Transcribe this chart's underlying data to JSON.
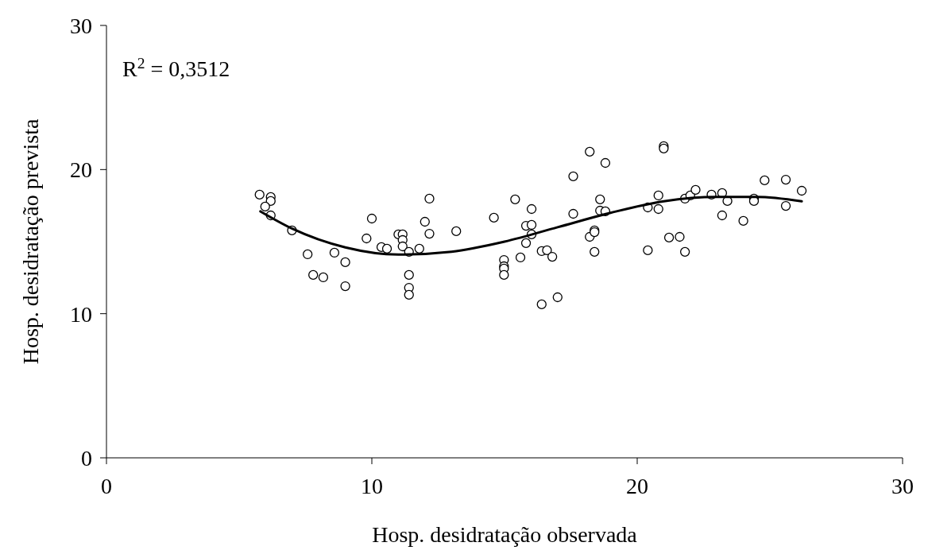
{
  "chart_data": {
    "type": "scatter",
    "xlabel": "Hosp. desidratação observada",
    "ylabel": "Hosp. desidratação prevista",
    "annotations": [
      "R$^{2}$ = 0,3512"
    ],
    "xlim": [
      0,
      30
    ],
    "ylim": [
      0,
      30
    ],
    "xticks": [
      0,
      10,
      20,
      30
    ],
    "yticks": [
      0,
      10,
      20,
      30
    ],
    "grid": false,
    "series": [
      {
        "marker": "circle",
        "color": "#000000",
        "x": [
          5.77,
          6.19,
          6.19,
          5.98,
          6.19,
          6.99,
          7.58,
          7.79,
          8.17,
          8.59,
          9.0,
          9.0,
          9.8,
          10.0,
          10.36,
          10.57,
          11.0,
          11.16,
          11.16,
          11.16,
          11.4,
          11.4,
          11.4,
          11.4,
          11.79,
          12.0,
          12.17,
          12.17,
          13.18,
          14.6,
          14.98,
          14.98,
          14.98,
          14.98,
          15.4,
          15.6,
          15.81,
          16.02,
          16.02,
          15.81,
          16.02,
          16.4,
          16.6,
          16.8,
          16.4,
          17.0,
          17.59,
          17.59,
          18.21,
          18.21,
          18.39,
          18.39,
          18.39,
          18.6,
          18.6,
          18.8,
          18.8,
          20.4,
          20.4,
          20.8,
          20.8,
          21.0,
          21.0,
          21.2,
          21.6,
          21.8,
          21.8,
          22.0,
          22.2,
          22.8,
          23.2,
          23.4,
          23.2,
          24.0,
          24.4,
          24.4,
          24.8,
          25.6,
          25.6,
          26.2
        ],
        "values": [
          18.26,
          18.09,
          17.82,
          17.43,
          16.82,
          15.78,
          14.12,
          12.69,
          12.52,
          14.23,
          13.57,
          11.91,
          15.22,
          16.6,
          14.62,
          14.51,
          15.5,
          15.5,
          15.11,
          14.67,
          14.29,
          12.69,
          11.8,
          11.31,
          14.51,
          16.38,
          15.55,
          17.98,
          15.72,
          16.66,
          13.73,
          13.29,
          13.13,
          12.69,
          17.93,
          13.9,
          16.1,
          16.16,
          15.5,
          14.9,
          17.26,
          14.34,
          14.4,
          13.95,
          10.65,
          11.14,
          19.53,
          16.93,
          21.24,
          15.33,
          15.78,
          15.66,
          14.29,
          17.93,
          17.15,
          17.1,
          20.46,
          17.37,
          14.4,
          18.2,
          17.26,
          21.62,
          21.46,
          15.28,
          15.33,
          14.29,
          17.98,
          18.2,
          18.59,
          18.26,
          18.37,
          17.82,
          16.82,
          16.44,
          17.98,
          17.82,
          19.25,
          19.3,
          17.48,
          18.53
        ]
      },
      {
        "type": "line",
        "color": "#000000",
        "line_style": "solid",
        "x": [
          5.8,
          7,
          9,
          11,
          13,
          15,
          17,
          19,
          21,
          23,
          24.5,
          26.2
        ],
        "values": [
          17.1,
          15.9,
          14.6,
          14.1,
          14.3,
          15.0,
          16.0,
          17.0,
          17.8,
          18.1,
          18.1,
          17.8
        ]
      }
    ]
  }
}
